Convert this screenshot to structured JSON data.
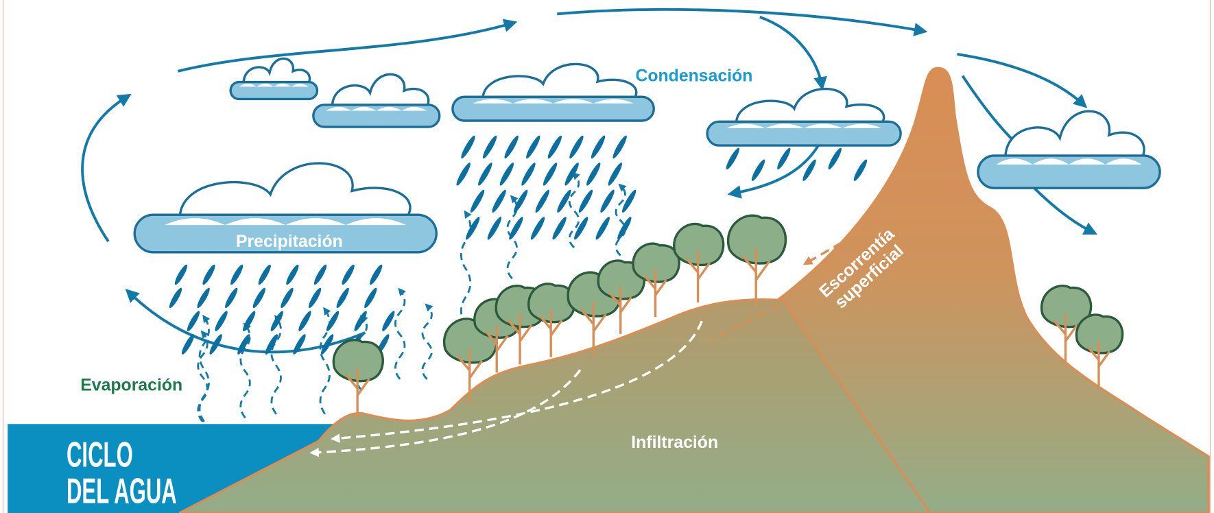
{
  "title": {
    "line1": "CICLO",
    "line2": "DEL AGUA"
  },
  "labels": {
    "condensation": "Condensación",
    "precipitation": "Precipitación",
    "evaporation": "Evaporación",
    "runoff_line1": "Escorrentía",
    "runoff_line2": "superficial",
    "infiltration": "Infiltración"
  }
}
